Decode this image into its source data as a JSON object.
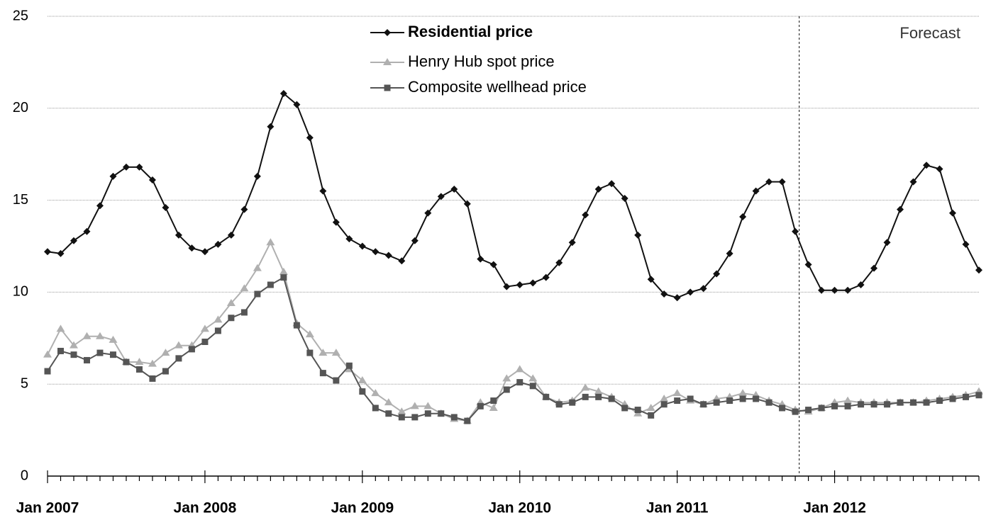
{
  "chart_data": {
    "type": "line",
    "categories": [
      "Jan 2007",
      null,
      null,
      null,
      null,
      null,
      null,
      null,
      null,
      null,
      null,
      null,
      "Jan 2008",
      null,
      null,
      null,
      null,
      null,
      null,
      null,
      null,
      null,
      null,
      null,
      "Jan 2009",
      null,
      null,
      null,
      null,
      null,
      null,
      null,
      null,
      null,
      null,
      null,
      "Jan 2010",
      null,
      null,
      null,
      null,
      null,
      null,
      null,
      null,
      null,
      null,
      null,
      "Jan 2011",
      null,
      null,
      null,
      null,
      null,
      null,
      null,
      null,
      null,
      null,
      null,
      "Jan 2012",
      null,
      null,
      null,
      null,
      null,
      null,
      null,
      null,
      null,
      null,
      null
    ],
    "series": [
      {
        "name": "Residential price",
        "color": "#111111",
        "marker": "diamond",
        "values": [
          12.2,
          12.1,
          12.8,
          13.3,
          14.7,
          16.3,
          16.8,
          16.8,
          16.1,
          14.6,
          13.1,
          12.4,
          12.2,
          12.6,
          13.1,
          14.5,
          16.3,
          19.0,
          20.8,
          20.2,
          18.4,
          15.5,
          13.8,
          12.9,
          12.5,
          12.2,
          12.0,
          11.7,
          12.8,
          14.3,
          15.2,
          15.6,
          14.8,
          11.8,
          11.5,
          10.3,
          10.4,
          10.5,
          10.8,
          11.6,
          12.7,
          14.2,
          15.6,
          15.9,
          15.1,
          13.1,
          10.7,
          9.9,
          9.7,
          10.0,
          10.2,
          11.0,
          12.1,
          14.1,
          15.5,
          16.0,
          16.0,
          13.3,
          11.5,
          10.1,
          10.1,
          10.1,
          10.4,
          11.3,
          12.7,
          14.5,
          16.0,
          16.9,
          16.7,
          14.3,
          12.6,
          11.2
        ]
      },
      {
        "name": "Henry Hub spot price",
        "color": "#b0b0b0",
        "marker": "triangle",
        "values": [
          6.6,
          8.0,
          7.1,
          7.6,
          7.6,
          7.4,
          6.2,
          6.2,
          6.1,
          6.7,
          7.1,
          7.1,
          8.0,
          8.5,
          9.4,
          10.2,
          11.3,
          12.7,
          11.1,
          8.3,
          7.7,
          6.7,
          6.7,
          5.8,
          5.2,
          4.5,
          4.0,
          3.5,
          3.8,
          3.8,
          3.4,
          3.1,
          3.0,
          4.0,
          3.7,
          5.3,
          5.8,
          5.3,
          4.3,
          4.0,
          4.1,
          4.8,
          4.6,
          4.3,
          3.9,
          3.4,
          3.7,
          4.2,
          4.5,
          4.1,
          3.9,
          4.2,
          4.3,
          4.5,
          4.4,
          4.1,
          3.9,
          3.6,
          3.5,
          3.7,
          4.0,
          4.1,
          4.0,
          4.0,
          4.0,
          4.0,
          4.0,
          4.1,
          4.2,
          4.3,
          4.4,
          4.6
        ]
      },
      {
        "name": "Composite wellhead price",
        "color": "#555555",
        "marker": "square",
        "values": [
          5.7,
          6.8,
          6.6,
          6.3,
          6.7,
          6.6,
          6.2,
          5.8,
          5.3,
          5.7,
          6.4,
          6.9,
          7.3,
          7.9,
          8.6,
          8.9,
          9.9,
          10.4,
          10.8,
          8.2,
          6.7,
          5.6,
          5.2,
          6.0,
          4.6,
          3.7,
          3.4,
          3.2,
          3.2,
          3.4,
          3.4,
          3.2,
          3.0,
          3.8,
          4.1,
          4.7,
          5.1,
          4.9,
          4.3,
          3.9,
          4.0,
          4.3,
          4.3,
          4.2,
          3.7,
          3.6,
          3.3,
          3.9,
          4.1,
          4.2,
          3.9,
          4.0,
          4.1,
          4.2,
          4.2,
          4.0,
          3.7,
          3.5,
          3.6,
          3.7,
          3.8,
          3.8,
          3.9,
          3.9,
          3.9,
          4.0,
          4.0,
          4.0,
          4.1,
          4.2,
          4.3,
          4.4
        ]
      }
    ],
    "annotation": "Forecast",
    "ylim": [
      0,
      25
    ],
    "yticks": [
      0,
      5,
      10,
      15,
      20,
      25
    ],
    "grid": true,
    "legend": "top"
  }
}
